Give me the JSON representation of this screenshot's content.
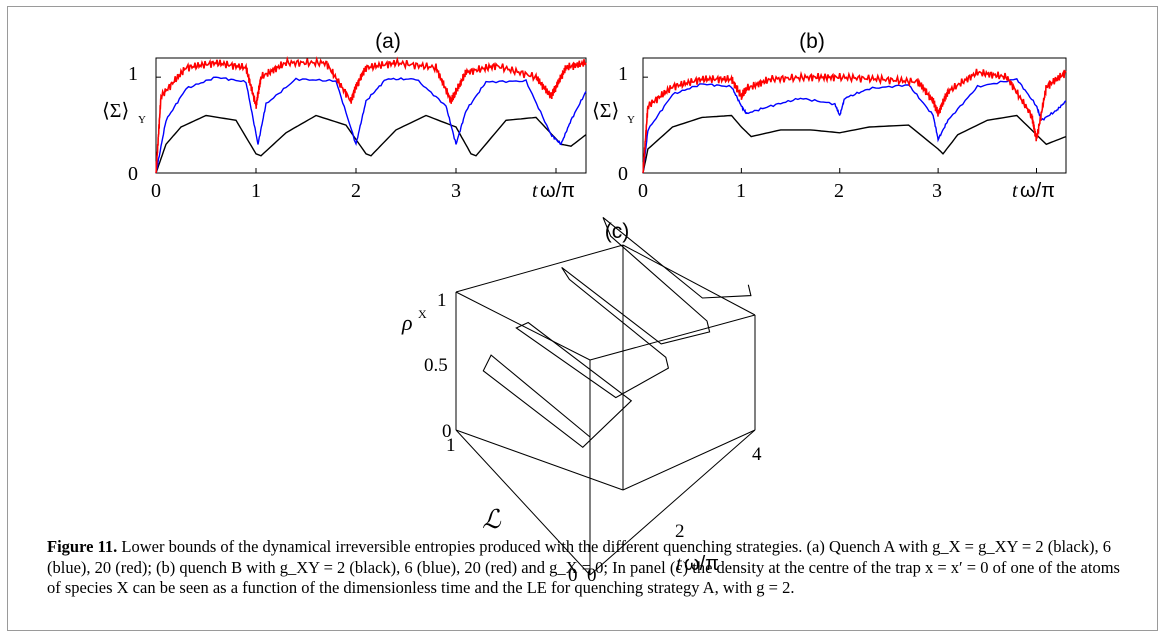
{
  "figure": {
    "caption_label": "Figure 11.",
    "caption_text": " Lower bounds of the dynamical irreversible entropies produced with the different quenching strategies. (a) Quench A with g_X = g_XY = 2 (black), 6 (blue), 20 (red); (b) quench B with g_XY = 2 (black), 6 (blue), 20 (red) and g_X = 0; In panel (c) the density at the centre of the trap x = x′ = 0 of one of the atoms of species X can be seen as a function of the dimensionless time and the LE for quenching strategy A, with g = 2."
  },
  "chart_data": [
    {
      "panel": "(a)",
      "type": "line",
      "ylabel": "⟨Σ⟩",
      "ylabel_sub": "Y",
      "xlabel_t": "t",
      "xlabel_rest": "ω/π",
      "xticks": [
        "0",
        "1",
        "2",
        "3"
      ],
      "yticks": [
        "0",
        "1"
      ],
      "xlim": [
        0,
        4.3
      ],
      "ylim": [
        0,
        1.2
      ],
      "colors": {
        "black": "#000000",
        "blue": "#0000ff",
        "red": "#ff0000"
      },
      "series": [
        {
          "name": "g = 2",
          "color": "black",
          "x": [
            0,
            0.1,
            0.25,
            0.5,
            0.8,
            1.0,
            1.05,
            1.3,
            1.6,
            1.9,
            2.1,
            2.15,
            2.4,
            2.7,
            3.0,
            3.15,
            3.2,
            3.5,
            3.8,
            4.05,
            4.15,
            4.3
          ],
          "y": [
            0,
            0.3,
            0.48,
            0.6,
            0.55,
            0.2,
            0.18,
            0.42,
            0.6,
            0.5,
            0.2,
            0.18,
            0.45,
            0.6,
            0.48,
            0.2,
            0.18,
            0.55,
            0.58,
            0.3,
            0.28,
            0.4
          ]
        },
        {
          "name": "g = 6",
          "color": "blue",
          "x": [
            0,
            0.1,
            0.3,
            0.6,
            0.9,
            1.02,
            1.1,
            1.4,
            1.8,
            2.0,
            2.1,
            2.3,
            2.6,
            2.9,
            3.0,
            3.1,
            3.3,
            3.7,
            3.95,
            4.05,
            4.15,
            4.3
          ],
          "y": [
            0,
            0.55,
            0.88,
            1.0,
            0.95,
            0.3,
            0.72,
            0.98,
            0.96,
            0.3,
            0.75,
            0.98,
            0.98,
            0.7,
            0.3,
            0.65,
            0.95,
            0.96,
            0.4,
            0.3,
            0.55,
            0.85
          ]
        },
        {
          "name": "g = 20",
          "color": "red",
          "x": [
            0,
            0.05,
            0.3,
            0.6,
            0.9,
            1.0,
            1.05,
            1.3,
            1.7,
            1.95,
            2.0,
            2.1,
            2.4,
            2.8,
            2.95,
            3.0,
            3.1,
            3.4,
            3.8,
            3.95,
            4.0,
            4.1,
            4.3
          ],
          "y": [
            0,
            0.8,
            1.1,
            1.15,
            1.1,
            0.7,
            1.0,
            1.15,
            1.15,
            0.75,
            0.9,
            1.1,
            1.15,
            1.1,
            0.75,
            0.85,
            1.05,
            1.12,
            1.0,
            0.8,
            0.9,
            1.1,
            1.15
          ]
        }
      ]
    },
    {
      "panel": "(b)",
      "type": "line",
      "ylabel": "⟨Σ⟩",
      "ylabel_sub": "Y",
      "xlabel_t": "t",
      "xlabel_rest": "ω/π",
      "xticks": [
        "0",
        "1",
        "2",
        "3"
      ],
      "yticks": [
        "0",
        "1"
      ],
      "xlim": [
        0,
        4.3
      ],
      "ylim": [
        0,
        1.2
      ],
      "colors": {
        "black": "#000000",
        "blue": "#0000ff",
        "red": "#ff0000"
      },
      "series": [
        {
          "name": "g = 2",
          "color": "black",
          "x": [
            0,
            0.05,
            0.3,
            0.6,
            0.9,
            1.0,
            1.1,
            1.4,
            1.7,
            2.0,
            2.3,
            2.7,
            3.0,
            3.05,
            3.2,
            3.5,
            3.8,
            4.1,
            4.3
          ],
          "y": [
            0,
            0.25,
            0.48,
            0.58,
            0.6,
            0.48,
            0.38,
            0.45,
            0.45,
            0.42,
            0.48,
            0.5,
            0.25,
            0.2,
            0.4,
            0.55,
            0.6,
            0.3,
            0.38
          ]
        },
        {
          "name": "g = 6",
          "color": "blue",
          "x": [
            0,
            0.05,
            0.3,
            0.6,
            0.9,
            1.0,
            1.05,
            1.3,
            1.6,
            1.95,
            2.0,
            2.05,
            2.3,
            2.7,
            2.95,
            3.0,
            3.1,
            3.4,
            3.8,
            4.0,
            4.05,
            4.2,
            4.3
          ],
          "y": [
            0,
            0.45,
            0.82,
            0.93,
            0.9,
            0.7,
            0.62,
            0.7,
            0.78,
            0.72,
            0.6,
            0.78,
            0.88,
            0.92,
            0.6,
            0.35,
            0.55,
            0.9,
            0.98,
            0.7,
            0.55,
            0.65,
            0.75
          ]
        },
        {
          "name": "g = 20",
          "color": "red",
          "x": [
            0,
            0.05,
            0.3,
            0.6,
            0.9,
            1.0,
            1.05,
            1.3,
            1.7,
            2.0,
            2.4,
            2.8,
            2.95,
            3.0,
            3.1,
            3.4,
            3.7,
            3.95,
            4.0,
            4.1,
            4.3
          ],
          "y": [
            0,
            0.7,
            0.9,
            0.98,
            0.98,
            0.8,
            0.88,
            0.98,
            1.0,
            1.0,
            0.98,
            0.95,
            0.75,
            0.62,
            0.85,
            1.05,
            1.0,
            0.6,
            0.35,
            0.9,
            1.05
          ]
        }
      ]
    },
    {
      "panel": "(c)",
      "type": "line",
      "projection": "3d",
      "zlabel": "ρ",
      "zlabel_sup": "X",
      "ylabel": "ℒ",
      "xlabel_t": "t",
      "xlabel_rest": "ω/π",
      "x_ticks": [
        "0",
        "2",
        "4"
      ],
      "y_ticks": [
        "0",
        "1"
      ],
      "z_ticks": [
        "0",
        "0.5",
        "1"
      ],
      "xlim": [
        0,
        4
      ],
      "ylim": [
        0,
        1
      ],
      "zlim": [
        0,
        1
      ],
      "series": [
        {
          "color": "black",
          "t": [
            0,
            0.2,
            0.5,
            0.8,
            1.0,
            1.1,
            1.3,
            1.6,
            1.9,
            2.0,
            2.1,
            2.4,
            2.7,
            2.9,
            3.0,
            3.1,
            3.4,
            3.7,
            3.9,
            4.0
          ],
          "L": [
            0,
            0.8,
            0.95,
            0.3,
            0,
            0.8,
            0.95,
            0.3,
            0,
            0.05,
            0.8,
            0.95,
            0.3,
            0,
            0.05,
            0.8,
            0.95,
            0.3,
            0,
            0.05
          ],
          "rho": [
            1,
            0.7,
            0.35,
            0.4,
            1,
            0.7,
            0.45,
            0.55,
            1,
            1,
            0.75,
            0.6,
            0.65,
            1,
            1,
            0.8,
            0.7,
            0.72,
            1,
            1
          ]
        }
      ]
    }
  ]
}
